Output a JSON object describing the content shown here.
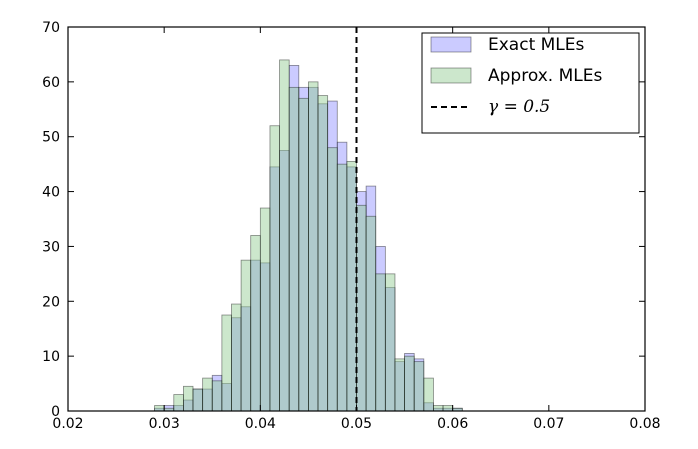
{
  "chart_data": {
    "type": "bar",
    "title": "",
    "xlabel": "",
    "ylabel": "",
    "xlim": [
      0.02,
      0.08
    ],
    "ylim": [
      0,
      70
    ],
    "xticks": [
      "0.02",
      "0.03",
      "0.04",
      "0.05",
      "0.06",
      "0.07",
      "0.08"
    ],
    "yticks": [
      "0",
      "10",
      "20",
      "30",
      "40",
      "50",
      "60",
      "70"
    ],
    "grid": false,
    "legend_position": "top-right",
    "series": [
      {
        "name": "Exact MLEs",
        "color": "#8b8bff",
        "bins": [
          [
            0.029,
            0.03,
            0.5
          ],
          [
            0.03,
            0.031,
            1
          ],
          [
            0.031,
            0.032,
            1
          ],
          [
            0.032,
            0.033,
            2
          ],
          [
            0.033,
            0.034,
            4
          ],
          [
            0.034,
            0.035,
            4
          ],
          [
            0.035,
            0.036,
            6.5
          ],
          [
            0.036,
            0.037,
            5
          ],
          [
            0.037,
            0.038,
            17
          ],
          [
            0.038,
            0.039,
            19
          ],
          [
            0.039,
            0.04,
            27.5
          ],
          [
            0.04,
            0.041,
            27
          ],
          [
            0.041,
            0.042,
            44.5
          ],
          [
            0.042,
            0.043,
            47.5
          ],
          [
            0.043,
            0.044,
            63
          ],
          [
            0.044,
            0.045,
            59
          ],
          [
            0.045,
            0.046,
            59
          ],
          [
            0.046,
            0.047,
            56
          ],
          [
            0.047,
            0.048,
            56.5
          ],
          [
            0.048,
            0.049,
            49
          ],
          [
            0.049,
            0.05,
            44.5
          ],
          [
            0.05,
            0.051,
            40
          ],
          [
            0.051,
            0.052,
            41
          ],
          [
            0.052,
            0.053,
            30
          ],
          [
            0.053,
            0.054,
            22.5
          ],
          [
            0.054,
            0.055,
            9
          ],
          [
            0.055,
            0.056,
            10.5
          ],
          [
            0.056,
            0.057,
            9.5
          ],
          [
            0.057,
            0.058,
            1.5
          ],
          [
            0.058,
            0.059,
            0.5
          ],
          [
            0.059,
            0.06,
            0.5
          ],
          [
            0.06,
            0.061,
            0.5
          ]
        ]
      },
      {
        "name": "Approx. MLEs",
        "color": "#8fc98f",
        "bins": [
          [
            0.029,
            0.03,
            1
          ],
          [
            0.03,
            0.031,
            0.5
          ],
          [
            0.031,
            0.032,
            3
          ],
          [
            0.032,
            0.033,
            4.5
          ],
          [
            0.033,
            0.034,
            4
          ],
          [
            0.034,
            0.035,
            6
          ],
          [
            0.035,
            0.036,
            5.5
          ],
          [
            0.036,
            0.037,
            17.5
          ],
          [
            0.037,
            0.038,
            19.5
          ],
          [
            0.038,
            0.039,
            27.5
          ],
          [
            0.039,
            0.04,
            32
          ],
          [
            0.04,
            0.041,
            37
          ],
          [
            0.041,
            0.042,
            52
          ],
          [
            0.042,
            0.043,
            64
          ],
          [
            0.043,
            0.044,
            59
          ],
          [
            0.044,
            0.045,
            57
          ],
          [
            0.045,
            0.046,
            60
          ],
          [
            0.046,
            0.047,
            57.5
          ],
          [
            0.047,
            0.048,
            48
          ],
          [
            0.048,
            0.049,
            45
          ],
          [
            0.049,
            0.05,
            45.5
          ],
          [
            0.05,
            0.051,
            37.5
          ],
          [
            0.051,
            0.052,
            35.5
          ],
          [
            0.052,
            0.053,
            25
          ],
          [
            0.053,
            0.054,
            25
          ],
          [
            0.054,
            0.055,
            9.5
          ],
          [
            0.055,
            0.056,
            10
          ],
          [
            0.056,
            0.057,
            9
          ],
          [
            0.057,
            0.058,
            6
          ],
          [
            0.058,
            0.059,
            1
          ],
          [
            0.059,
            0.06,
            1
          ],
          [
            0.06,
            0.061,
            0.5
          ]
        ]
      }
    ],
    "reference_line": {
      "label": "γ = 0.5",
      "x": 0.05,
      "style": "dashed",
      "color": "#000000"
    }
  }
}
